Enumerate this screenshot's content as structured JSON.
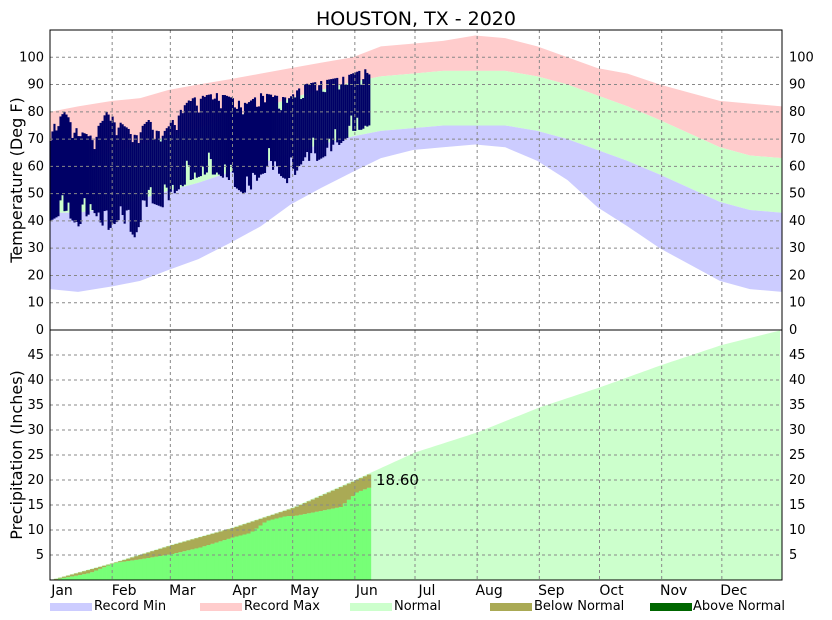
{
  "chart_data": {
    "type": "area",
    "title": "HOUSTON, TX - 2020",
    "months": [
      "Jan",
      "Feb",
      "Mar",
      "Apr",
      "May",
      "Jun",
      "Jul",
      "Aug",
      "Sep",
      "Oct",
      "Nov",
      "Dec"
    ],
    "colors": {
      "record_min": "#ccccff",
      "record_max": "#ffcccc",
      "normal": "#ccffcc",
      "actual_temp": "#000066",
      "observed_precip": "#77ff77",
      "below_normal": "#aaaa55",
      "above_normal": "#006600"
    },
    "temperature": {
      "ylabel": "Temperature (Deg F)",
      "ylim": [
        0,
        110
      ],
      "yticks": [
        0,
        10,
        20,
        30,
        40,
        50,
        60,
        70,
        80,
        90,
        100
      ],
      "day_of_year": [
        1,
        15,
        32,
        46,
        60,
        75,
        91,
        106,
        121,
        136,
        152,
        166,
        182,
        197,
        213,
        228,
        244,
        259,
        274,
        289,
        305,
        320,
        335,
        350,
        366
      ],
      "record_max": [
        80,
        82,
        84,
        85,
        88,
        90,
        92,
        94,
        96,
        98,
        100,
        104,
        105,
        106,
        108,
        107,
        104,
        100,
        96,
        94,
        90,
        87,
        84,
        83,
        82
      ],
      "normal_high": [
        63,
        63,
        65,
        68,
        71,
        74,
        78,
        81,
        85,
        88,
        91,
        93,
        94,
        95,
        95,
        95,
        93,
        90,
        86,
        82,
        77,
        72,
        67,
        64,
        63
      ],
      "normal_low": [
        43,
        43,
        45,
        48,
        51,
        54,
        58,
        61,
        65,
        68,
        71,
        73,
        74,
        75,
        75,
        75,
        73,
        70,
        66,
        62,
        57,
        52,
        47,
        44,
        43
      ],
      "record_min": [
        15,
        14,
        16,
        18,
        22,
        26,
        32,
        38,
        46,
        52,
        58,
        63,
        66,
        67,
        68,
        67,
        62,
        55,
        45,
        38,
        30,
        24,
        18,
        15,
        14
      ],
      "actual_2020": {
        "days": [
          1,
          8,
          15,
          22,
          29,
          36,
          43,
          50,
          57,
          64,
          71,
          78,
          85,
          92,
          99,
          106,
          113,
          120,
          127,
          134,
          141,
          148,
          155,
          160
        ],
        "high": [
          74,
          80,
          73,
          71,
          80,
          76,
          72,
          77,
          72,
          79,
          85,
          86,
          87,
          85,
          83,
          87,
          86,
          85,
          90,
          91,
          92,
          93,
          95,
          96
        ],
        "low": [
          40,
          43,
          38,
          44,
          36,
          41,
          34,
          47,
          45,
          51,
          55,
          57,
          57,
          53,
          49,
          57,
          59,
          53,
          62,
          62,
          65,
          70,
          73,
          75
        ]
      }
    },
    "precipitation": {
      "ylabel": "Precipitation (Inches)",
      "ylim": [
        0,
        50
      ],
      "yticks": [
        5,
        10,
        15,
        20,
        25,
        30,
        35,
        40,
        45
      ],
      "annotation": "18.60",
      "normal_cumulative": {
        "days": [
          1,
          32,
          61,
          92,
          122,
          153,
          183,
          214,
          245,
          275,
          306,
          336,
          366
        ],
        "values": [
          0,
          3.4,
          7.0,
          10.5,
          14.5,
          20.0,
          25.5,
          29.5,
          34.5,
          38.5,
          43.0,
          47.0,
          50.0
        ]
      },
      "observed_2020": {
        "days": [
          1,
          15,
          20,
          32,
          46,
          61,
          75,
          92,
          100,
          108,
          118,
          122,
          135,
          145,
          153,
          160
        ],
        "values": [
          0,
          1.0,
          1.4,
          3.4,
          4.2,
          5.2,
          6.5,
          8.6,
          9.4,
          11.8,
          12.8,
          12.8,
          13.8,
          14.6,
          17.5,
          18.6
        ]
      }
    },
    "legend": {
      "record_min": "Record Min",
      "record_max": "Record Max",
      "normal": "Normal",
      "below_normal": "Below Normal",
      "above_normal": "Above Normal"
    }
  }
}
